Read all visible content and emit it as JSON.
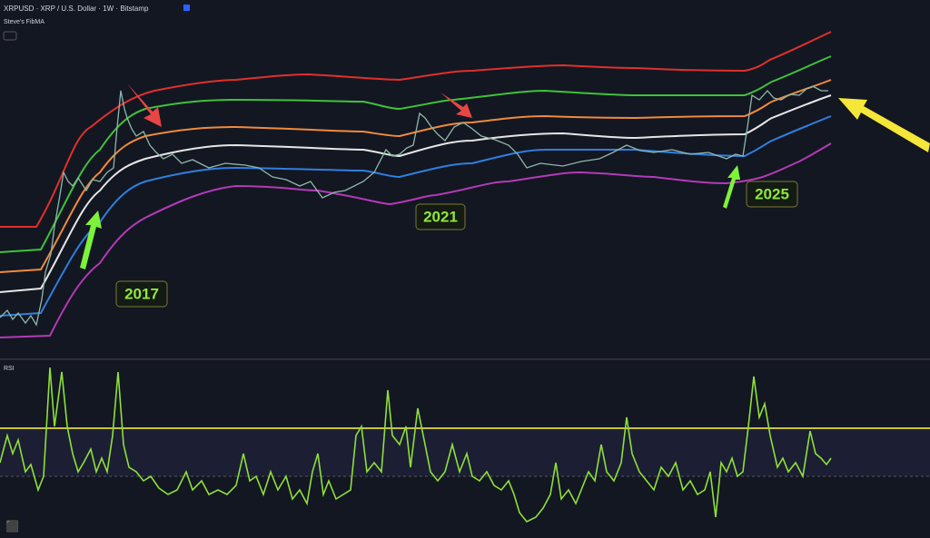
{
  "header": {
    "symbol": "XRPUSD · XRP / U.S. Dollar · 1W · Bitstamp",
    "indicator": "Steve's FibMA"
  },
  "rsi_panel": {
    "title": "RSI"
  },
  "annotations": [
    "2017",
    "2021",
    "2025"
  ]
}
